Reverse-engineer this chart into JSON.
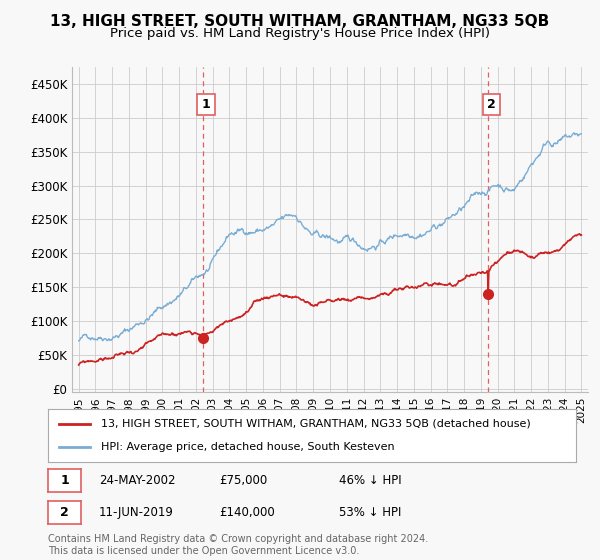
{
  "title": "13, HIGH STREET, SOUTH WITHAM, GRANTHAM, NG33 5QB",
  "subtitle": "Price paid vs. HM Land Registry's House Price Index (HPI)",
  "ylabel_ticks": [
    "£0",
    "£50K",
    "£100K",
    "£150K",
    "£200K",
    "£250K",
    "£300K",
    "£350K",
    "£400K",
    "£450K"
  ],
  "ytick_vals": [
    0,
    50000,
    100000,
    150000,
    200000,
    250000,
    300000,
    350000,
    400000,
    450000
  ],
  "xlim_start": 1994.6,
  "xlim_end": 2025.4,
  "ylim": [
    -5000,
    475000
  ],
  "marker1_x": 2002.39,
  "marker1_y": 75000,
  "marker2_x": 2019.44,
  "marker2_y": 140000,
  "vline1_x": 2002.39,
  "vline2_x": 2019.44,
  "legend_line1": "13, HIGH STREET, SOUTH WITHAM, GRANTHAM, NG33 5QB (detached house)",
  "legend_line2": "HPI: Average price, detached house, South Kesteven",
  "annotation1_num": "1",
  "annotation1_date": "24-MAY-2002",
  "annotation1_price": "£75,000",
  "annotation1_pct": "46% ↓ HPI",
  "annotation2_num": "2",
  "annotation2_date": "11-JUN-2019",
  "annotation2_price": "£140,000",
  "annotation2_pct": "53% ↓ HPI",
  "footer": "Contains HM Land Registry data © Crown copyright and database right 2024.\nThis data is licensed under the Open Government Licence v3.0.",
  "red_color": "#cc2222",
  "blue_color": "#7aadd4",
  "vline_color": "#e06060",
  "background_color": "#f8f8f8",
  "grid_color": "#cccccc",
  "title_fontsize": 11,
  "subtitle_fontsize": 9.5
}
